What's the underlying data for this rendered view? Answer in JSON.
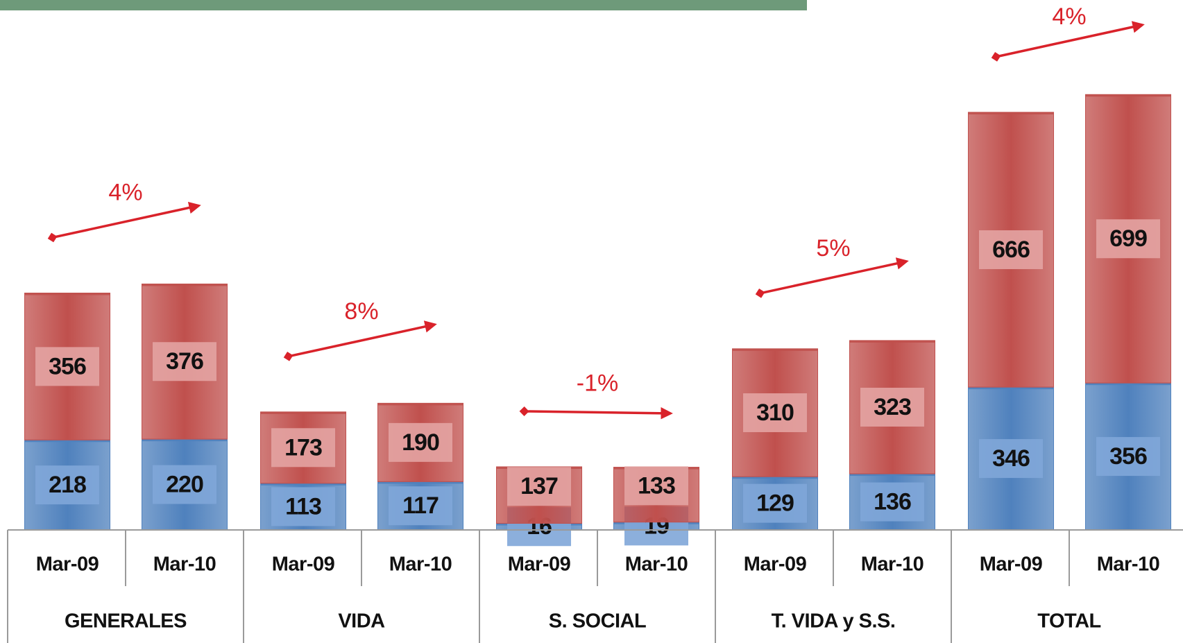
{
  "chart_data": {
    "type": "stacked_bar",
    "groups": [
      {
        "name": "GENERALES",
        "change": "4%"
      },
      {
        "name": "VIDA",
        "change": "8%"
      },
      {
        "name": "S. SOCIAL",
        "change": "-1%"
      },
      {
        "name": "T. VIDA y S.S.",
        "change": "5%"
      },
      {
        "name": "TOTAL",
        "change": "4%"
      }
    ],
    "categories": [
      "Mar-09",
      "Mar-10",
      "Mar-09",
      "Mar-10",
      "Mar-09",
      "Mar-10",
      "Mar-09",
      "Mar-10",
      "Mar-09",
      "Mar-10"
    ],
    "series": [
      {
        "color": "#4f81bd",
        "label_color": "#7fa6d8",
        "values": [
          218,
          220,
          113,
          117,
          16,
          19,
          129,
          136,
          346,
          356
        ]
      },
      {
        "color": "#c0504d",
        "label_color": "#e3a3a2",
        "values": [
          356,
          376,
          173,
          190,
          137,
          133,
          310,
          323,
          666,
          699
        ]
      }
    ],
    "arrow_color": "#d9222a"
  }
}
